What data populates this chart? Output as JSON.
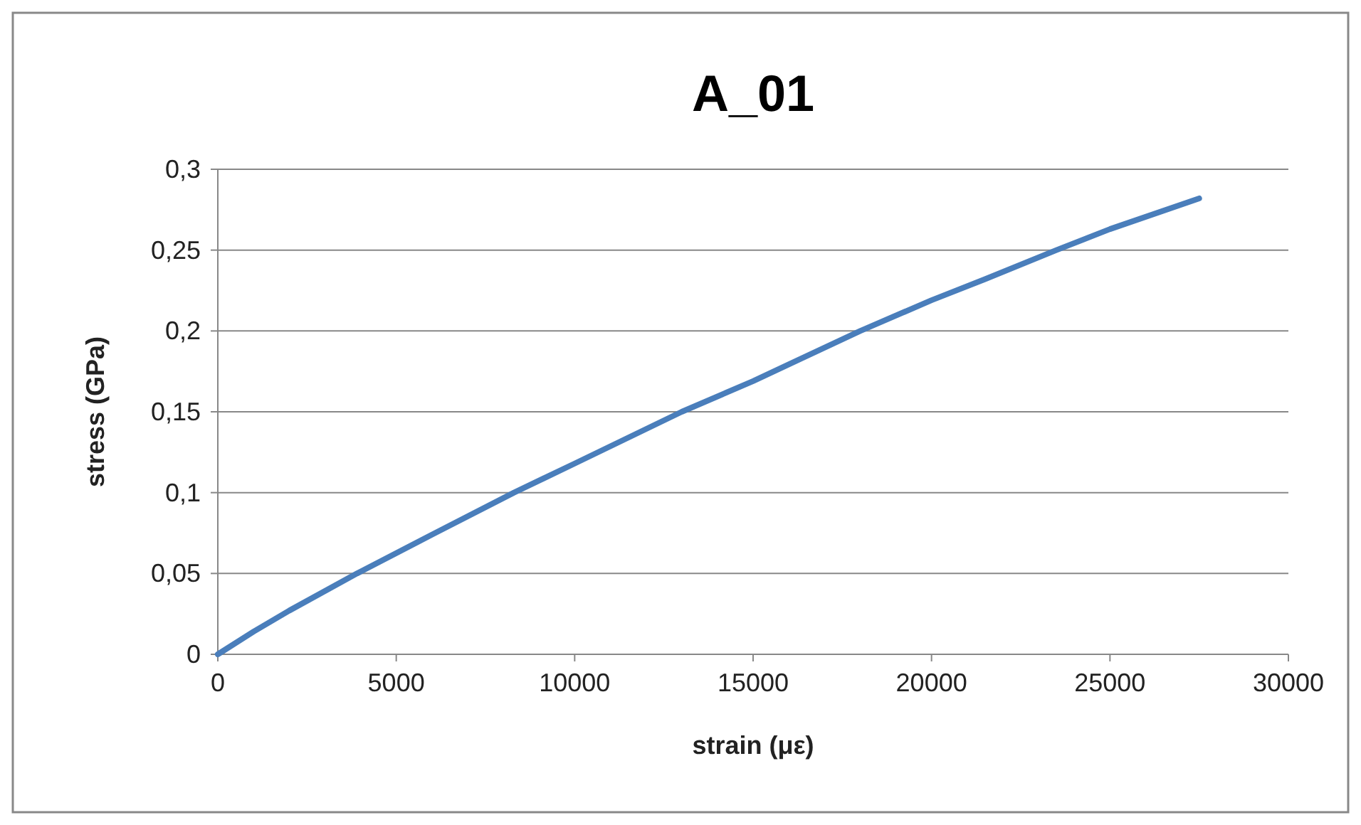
{
  "chart_data": {
    "type": "line",
    "title": "A_01",
    "xlabel": "strain (με)",
    "ylabel": "stress (GPa)",
    "series": [
      {
        "color": "#4a7ebb",
        "x": [
          0,
          1000,
          2000,
          3900,
          6000,
          8300,
          10000,
          13000,
          15000,
          18000,
          20000,
          21500,
          23500,
          25000,
          27500
        ],
        "values": [
          0,
          0.014,
          0.027,
          0.05,
          0.074,
          0.1,
          0.118,
          0.15,
          0.169,
          0.2,
          0.219,
          0.232,
          0.25,
          0.263,
          0.282
        ]
      }
    ],
    "xlim": [
      0,
      30000
    ],
    "xticks": [
      0,
      5000,
      10000,
      15000,
      20000,
      25000,
      30000
    ],
    "ylim": [
      0,
      0.3
    ],
    "yticks": [
      {
        "value": 0,
        "label": "0"
      },
      {
        "value": 0.05,
        "label": "0,05"
      },
      {
        "value": 0.1,
        "label": "0,1"
      },
      {
        "value": 0.15,
        "label": "0,15"
      },
      {
        "value": 0.2,
        "label": "0,2"
      },
      {
        "value": 0.25,
        "label": "0,25"
      },
      {
        "value": 0.3,
        "label": "0,3"
      }
    ],
    "grid": "y",
    "marker": "none",
    "line_style": "solid"
  }
}
